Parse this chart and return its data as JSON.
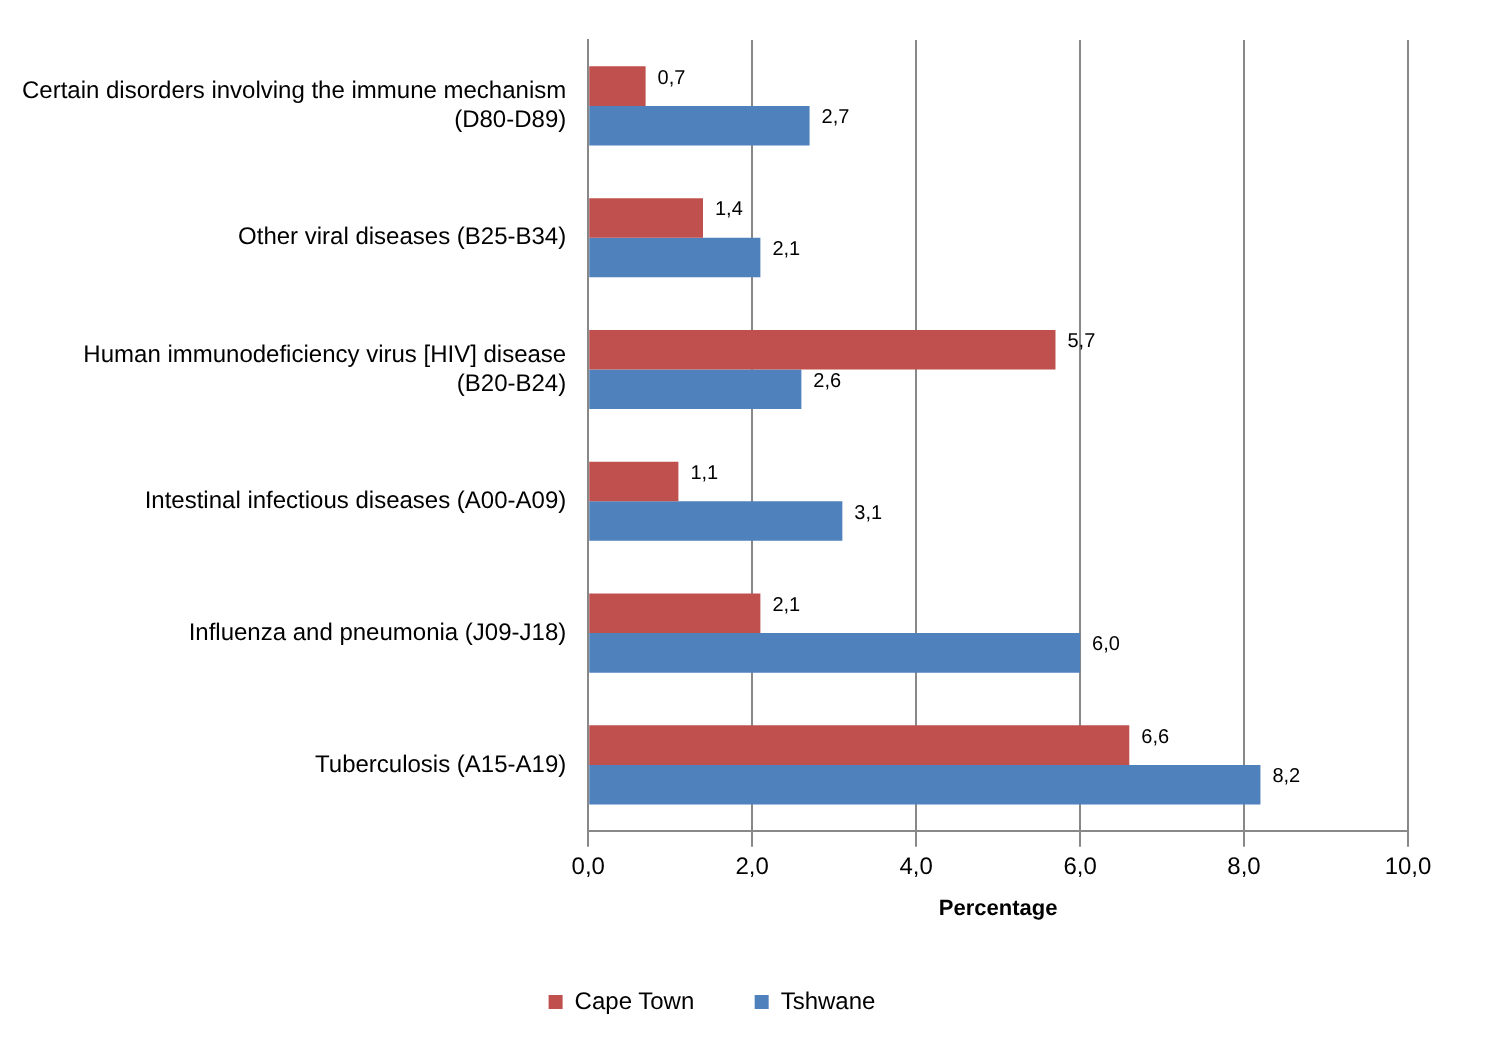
{
  "chart_data": {
    "type": "bar",
    "orientation": "horizontal",
    "xlabel": "Percentage",
    "categories": [
      "Certain disorders involving the immune mechanism (D80-D89)",
      "Other viral diseases (B25-B34)",
      "Human immunodeficiency virus [HIV] disease (B20-B24)",
      "Intestinal infectious diseases (A00-A09)",
      "Influenza and pneumonia (J09-J18)",
      "Tuberculosis (A15-A19)"
    ],
    "series": [
      {
        "name": "Cape Town",
        "color": "#c0504d",
        "values": [
          0.7,
          1.4,
          5.7,
          1.1,
          2.1,
          6.6
        ],
        "value_labels": [
          "0,7",
          "1,4",
          "5,7",
          "1,1",
          "2,1",
          "6,6"
        ]
      },
      {
        "name": "Tshwane",
        "color": "#4f81bd",
        "values": [
          2.7,
          2.1,
          2.6,
          3.1,
          6.0,
          8.2
        ],
        "value_labels": [
          "2,7",
          "2,1",
          "2,6",
          "3,1",
          "6,0",
          "8,2"
        ]
      }
    ],
    "xlim": [
      0,
      10
    ],
    "xticks": [
      {
        "value": 0,
        "label": "0,0"
      },
      {
        "value": 2,
        "label": "2,0"
      },
      {
        "value": 4,
        "label": "4,0"
      },
      {
        "value": 6,
        "label": "6,0"
      },
      {
        "value": 8,
        "label": "8,0"
      },
      {
        "value": 10,
        "label": "10,0"
      }
    ],
    "grid": "x",
    "legend": "bottom"
  }
}
